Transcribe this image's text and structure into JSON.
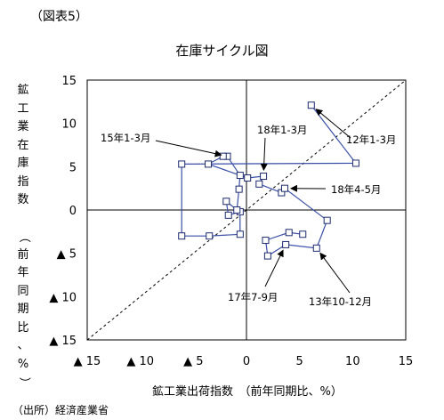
{
  "figure_label": "（図表5）",
  "source": "（出所）経済産業省",
  "chart_data": {
    "type": "scatter",
    "title": "在庫サイクル図",
    "xlabel": "鉱工業出荷指数　（前年同期比、%）",
    "ylabel": "鉱工業在庫指数　（前年同期比、%）",
    "xlim": [
      -15,
      15
    ],
    "ylim": [
      -15,
      15
    ],
    "x_ticks": [
      {
        "value": -15,
        "label": "▲ 15"
      },
      {
        "value": -10,
        "label": "▲ 10"
      },
      {
        "value": -5,
        "label": "▲ 5"
      },
      {
        "value": 0,
        "label": "0"
      },
      {
        "value": 5,
        "label": "5"
      },
      {
        "value": 10,
        "label": "10"
      },
      {
        "value": 15,
        "label": "15"
      }
    ],
    "y_ticks": [
      {
        "value": 15,
        "label": "15"
      },
      {
        "value": 10,
        "label": "10"
      },
      {
        "value": 5,
        "label": "5"
      },
      {
        "value": 0,
        "label": "0"
      },
      {
        "value": -5,
        "label": "▲ 5"
      },
      {
        "value": -10,
        "label": "▲ 10"
      },
      {
        "value": -15,
        "label": "▲ 15"
      }
    ],
    "grid": false,
    "reference_line": "y = x (dashed)",
    "series_color": "#3a4fa8",
    "marker": "hollow-square",
    "points": [
      {
        "x": 6.1,
        "y": 12.1
      },
      {
        "x": 10.3,
        "y": 5.4
      },
      {
        "x": -6.1,
        "y": 5.3
      },
      {
        "x": -6.1,
        "y": -3.0
      },
      {
        "x": -3.5,
        "y": -3.0
      },
      {
        "x": -0.6,
        "y": -2.8
      },
      {
        "x": -0.6,
        "y": -0.2
      },
      {
        "x": -1.7,
        "y": -0.6
      },
      {
        "x": -1.9,
        "y": 1.0
      },
      {
        "x": -0.9,
        "y": 0.0
      },
      {
        "x": -0.7,
        "y": 2.4
      },
      {
        "x": -0.6,
        "y": 4.0
      },
      {
        "x": -1.8,
        "y": 6.2
      },
      {
        "x": -2.2,
        "y": 6.2
      },
      {
        "x": -3.6,
        "y": 5.3
      },
      {
        "x": 0.1,
        "y": 3.7
      },
      {
        "x": 1.6,
        "y": 3.9
      },
      {
        "x": 1.2,
        "y": 3.0
      },
      {
        "x": 3.3,
        "y": 2.0
      },
      {
        "x": 3.6,
        "y": 2.5
      },
      {
        "x": 7.6,
        "y": -1.2
      },
      {
        "x": 6.6,
        "y": -4.4
      },
      {
        "x": 3.7,
        "y": -4.0
      },
      {
        "x": 2.0,
        "y": -5.3
      },
      {
        "x": 1.8,
        "y": -3.5
      },
      {
        "x": 4.0,
        "y": -2.6
      },
      {
        "x": 5.3,
        "y": -2.8
      }
    ],
    "annotations": [
      {
        "text": "12年1-3月",
        "point": 0
      },
      {
        "text": "13年10-12月",
        "point": 21
      },
      {
        "text": "15年1-3月",
        "point": 12
      },
      {
        "text": "17年7-9月",
        "point": 22
      },
      {
        "text": "18年1-3月",
        "point": 16
      },
      {
        "text": "18年4-5月",
        "point": 19
      }
    ]
  }
}
